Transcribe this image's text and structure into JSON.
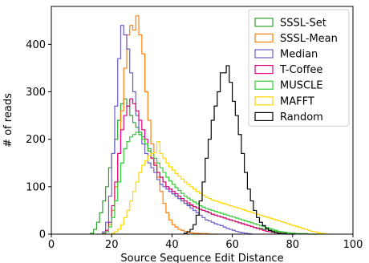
{
  "chart_data": {
    "type": "histogram",
    "xlabel": "Source Sequence Edit Distance",
    "ylabel": "# of reads",
    "xlim": [
      0,
      100
    ],
    "ylim": [
      0,
      480
    ],
    "xticks": [
      0,
      20,
      40,
      60,
      80,
      100
    ],
    "yticks": [
      0,
      100,
      200,
      300,
      400
    ],
    "legend_position": "top-right",
    "grid": false,
    "series": [
      {
        "name": "SSSL-Set",
        "color": "#2ca02c",
        "x": [
          13,
          14,
          15,
          16,
          17,
          18,
          19,
          20,
          21,
          22,
          23,
          24,
          25,
          26,
          27,
          28,
          29,
          30,
          31,
          32,
          33,
          34,
          35,
          36,
          37,
          38,
          39,
          40,
          41,
          42,
          43,
          44,
          45,
          46,
          47,
          48,
          49,
          50,
          51,
          52,
          53,
          54,
          55,
          56,
          57,
          58,
          59,
          60,
          61,
          62,
          63,
          64,
          65,
          66,
          67,
          68,
          69,
          70,
          71,
          72,
          73,
          74,
          75,
          76,
          77,
          78,
          79,
          80,
          81,
          82,
          83,
          84,
          85,
          86,
          87,
          88
        ],
        "values": [
          2,
          10,
          25,
          45,
          70,
          100,
          140,
          170,
          200,
          240,
          275,
          285,
          270,
          250,
          235,
          225,
          215,
          205,
          190,
          175,
          160,
          145,
          130,
          120,
          110,
          100,
          95,
          85,
          80,
          75,
          70,
          65,
          62,
          60,
          58,
          55,
          52,
          50,
          48,
          45,
          42,
          40,
          38,
          36,
          34,
          32,
          30,
          28,
          26,
          24,
          22,
          20,
          18,
          16,
          14,
          13,
          12,
          10,
          9,
          8,
          7,
          6,
          5,
          4,
          3,
          3,
          2,
          2,
          1,
          1,
          1,
          1,
          0,
          0,
          0,
          0
        ]
      },
      {
        "name": "SSSL-Mean",
        "color": "#ff7f0e",
        "x": [
          18,
          19,
          20,
          21,
          22,
          23,
          24,
          25,
          26,
          27,
          28,
          29,
          30,
          31,
          32,
          33,
          34,
          35,
          36,
          37,
          38,
          39,
          40,
          41,
          42,
          43,
          44,
          45,
          46,
          47,
          48,
          49,
          50,
          51,
          52,
          53,
          54
        ],
        "values": [
          5,
          20,
          50,
          100,
          170,
          260,
          350,
          420,
          440,
          430,
          460,
          420,
          380,
          300,
          240,
          190,
          150,
          120,
          90,
          65,
          45,
          30,
          20,
          15,
          10,
          8,
          6,
          4,
          3,
          2,
          2,
          1,
          1,
          1,
          0,
          0,
          0
        ]
      },
      {
        "name": "Median",
        "color": "#6a5acd",
        "x": [
          17,
          18,
          19,
          20,
          21,
          22,
          23,
          24,
          25,
          26,
          27,
          28,
          29,
          30,
          31,
          32,
          33,
          34,
          35,
          36,
          37,
          38,
          39,
          40,
          41,
          42,
          43,
          44,
          45,
          46,
          47,
          48,
          49,
          50,
          51,
          52,
          53,
          54,
          55,
          56,
          57,
          58,
          59,
          60,
          61,
          62,
          63,
          64,
          65,
          66
        ],
        "values": [
          5,
          25,
          80,
          170,
          270,
          370,
          440,
          420,
          390,
          340,
          300,
          250,
          210,
          190,
          170,
          150,
          140,
          130,
          115,
          105,
          100,
          95,
          90,
          85,
          80,
          75,
          70,
          65,
          60,
          55,
          50,
          45,
          40,
          35,
          30,
          28,
          25,
          22,
          20,
          18,
          15,
          12,
          10,
          8,
          6,
          4,
          3,
          2,
          1,
          0
        ]
      },
      {
        "name": "T-Coffee",
        "color": "#e6007e",
        "x": [
          17,
          18,
          19,
          20,
          21,
          22,
          23,
          24,
          25,
          26,
          27,
          28,
          29,
          30,
          31,
          32,
          33,
          34,
          35,
          36,
          37,
          38,
          39,
          40,
          41,
          42,
          43,
          44,
          45,
          46,
          47,
          48,
          49,
          50,
          51,
          52,
          53,
          54,
          55,
          56,
          57,
          58,
          59,
          60,
          61,
          62,
          63,
          64,
          65,
          66,
          67,
          68,
          69,
          70,
          71,
          72,
          73,
          74,
          75,
          76
        ],
        "values": [
          2,
          8,
          25,
          60,
          110,
          170,
          220,
          250,
          270,
          285,
          275,
          260,
          240,
          220,
          200,
          180,
          160,
          145,
          130,
          120,
          110,
          100,
          95,
          90,
          85,
          80,
          75,
          70,
          66,
          62,
          58,
          55,
          52,
          50,
          48,
          45,
          42,
          40,
          38,
          36,
          34,
          32,
          30,
          28,
          26,
          24,
          22,
          20,
          18,
          16,
          14,
          12,
          10,
          8,
          6,
          5,
          4,
          3,
          2,
          1
        ]
      },
      {
        "name": "MUSCLE",
        "color": "#32cd32",
        "x": [
          17,
          18,
          19,
          20,
          21,
          22,
          23,
          24,
          25,
          26,
          27,
          28,
          29,
          30,
          31,
          32,
          33,
          34,
          35,
          36,
          37,
          38,
          39,
          40,
          41,
          42,
          43,
          44,
          45,
          46,
          47,
          48,
          49,
          50,
          51,
          52,
          53,
          54,
          55,
          56,
          57,
          58,
          59,
          60,
          61,
          62,
          63,
          64,
          65,
          66,
          67,
          68,
          69,
          70,
          71,
          72,
          73,
          74,
          75,
          76,
          77,
          78,
          79,
          80
        ],
        "values": [
          1,
          5,
          15,
          35,
          70,
          110,
          150,
          180,
          195,
          205,
          210,
          215,
          210,
          200,
          190,
          180,
          170,
          160,
          150,
          140,
          130,
          120,
          112,
          105,
          98,
          92,
          86,
          80,
          76,
          72,
          68,
          64,
          60,
          57,
          54,
          52,
          50,
          48,
          46,
          44,
          42,
          40,
          38,
          36,
          34,
          32,
          30,
          28,
          26,
          24,
          22,
          20,
          18,
          16,
          14,
          12,
          10,
          8,
          6,
          5,
          4,
          3,
          2,
          1
        ]
      },
      {
        "name": "MAFFT",
        "color": "#ffd700",
        "x": [
          20,
          21,
          22,
          23,
          24,
          25,
          26,
          27,
          28,
          29,
          30,
          31,
          32,
          33,
          34,
          35,
          36,
          37,
          38,
          39,
          40,
          41,
          42,
          43,
          44,
          45,
          46,
          47,
          48,
          49,
          50,
          51,
          52,
          53,
          54,
          55,
          56,
          57,
          58,
          59,
          60,
          61,
          62,
          63,
          64,
          65,
          66,
          67,
          68,
          69,
          70,
          71,
          72,
          73,
          74,
          75,
          76,
          77,
          78,
          79,
          80,
          81,
          82,
          83,
          84,
          85,
          86,
          87,
          88,
          89,
          90
        ],
        "values": [
          2,
          5,
          10,
          20,
          35,
          50,
          70,
          90,
          110,
          130,
          145,
          155,
          165,
          170,
          172,
          195,
          170,
          160,
          150,
          142,
          135,
          128,
          122,
          116,
          110,
          105,
          100,
          95,
          90,
          86,
          82,
          78,
          75,
          72,
          70,
          68,
          66,
          64,
          62,
          60,
          58,
          56,
          54,
          52,
          50,
          48,
          46,
          44,
          42,
          40,
          38,
          36,
          34,
          32,
          30,
          28,
          26,
          24,
          22,
          20,
          18,
          16,
          14,
          12,
          10,
          8,
          6,
          5,
          3,
          2,
          1
        ]
      },
      {
        "name": "Random",
        "color": "#000000",
        "x": [
          44,
          45,
          46,
          47,
          48,
          49,
          50,
          51,
          52,
          53,
          54,
          55,
          56,
          57,
          58,
          59,
          60,
          61,
          62,
          63,
          64,
          65,
          66,
          67,
          68,
          69,
          70,
          71,
          72,
          73,
          74,
          75,
          76,
          77,
          78,
          79,
          80
        ],
        "values": [
          2,
          5,
          10,
          20,
          40,
          70,
          110,
          160,
          200,
          240,
          270,
          300,
          340,
          340,
          355,
          320,
          280,
          250,
          210,
          170,
          130,
          95,
          70,
          50,
          35,
          25,
          18,
          12,
          8,
          5,
          3,
          2,
          1,
          1,
          0,
          0,
          0
        ]
      }
    ]
  }
}
